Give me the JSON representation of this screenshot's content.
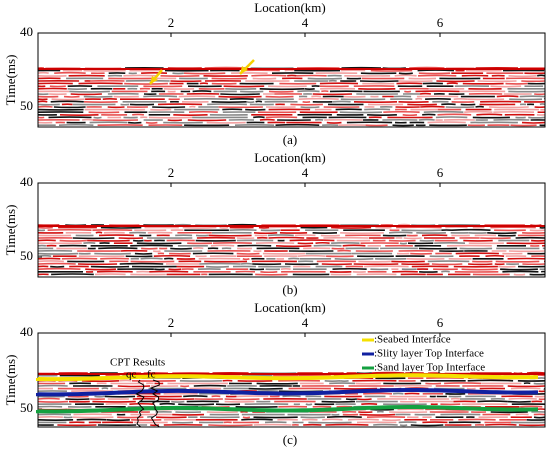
{
  "panels": [
    {
      "x_label": "Location(km)",
      "y_label": "Time(ms)",
      "x_ticks": [
        2,
        4,
        6
      ],
      "y_ticks": [
        40,
        50
      ],
      "caption": "(a)"
    },
    {
      "x_label": "Location(km)",
      "y_label": "Time(ms)",
      "x_ticks": [
        2,
        4,
        6
      ],
      "y_ticks": [
        40,
        50
      ],
      "caption": "(b)"
    },
    {
      "x_label": "Location(km)",
      "y_label": "Time(ms)",
      "x_ticks": [
        2,
        4,
        6
      ],
      "y_ticks": [
        40,
        50
      ],
      "caption": "(c)",
      "legend": [
        ":Seabed Interface",
        ":Slity layer Top Interface",
        ":Sand layer Top Interface"
      ],
      "annotation": "CPT Results",
      "cpt_labels": [
        "qc",
        "fc"
      ]
    }
  ]
}
